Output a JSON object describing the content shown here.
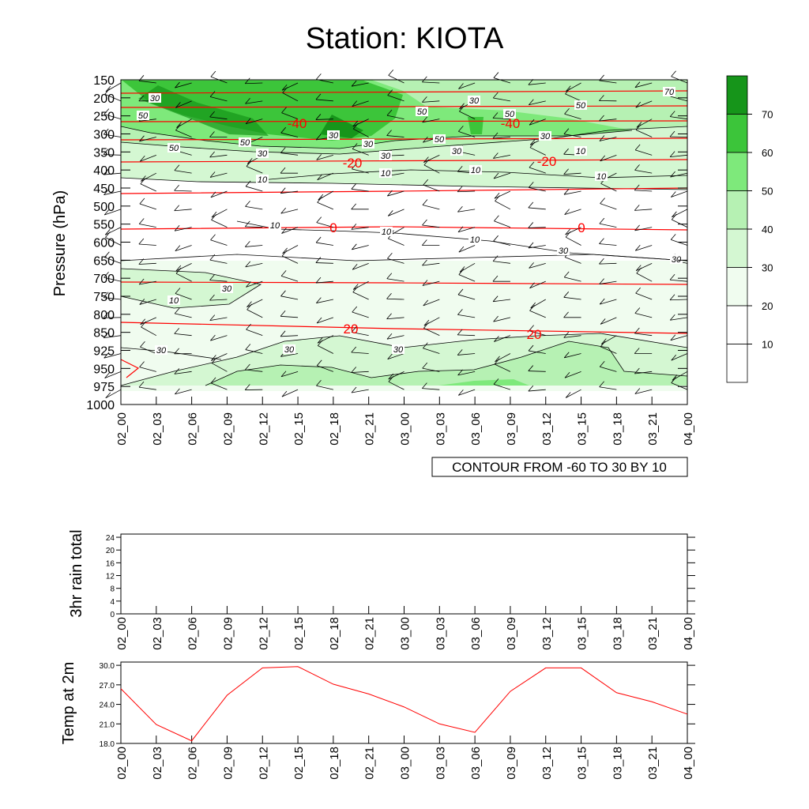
{
  "title": "Station: KIOTA",
  "colors": {
    "levels": [
      "#ffffff",
      "#f0fcef",
      "#d4f7d2",
      "#b6f1b3",
      "#7ee97b",
      "#3cc53a",
      "#16951a"
    ],
    "temperature_line": "#ff0000",
    "contour_line": "#000000"
  },
  "chart_data": [
    {
      "type": "heatmap",
      "title": "Station: KIOTA",
      "xlabel": "",
      "ylabel": "Pressure (hPa)",
      "x": [
        "02_00",
        "02_03",
        "02_06",
        "02_09",
        "02_12",
        "02_15",
        "02_18",
        "02_21",
        "03_00",
        "03_03",
        "03_06",
        "03_09",
        "03_12",
        "03_15",
        "03_18",
        "03_21",
        "04_00"
      ],
      "y": [
        150,
        200,
        250,
        300,
        350,
        400,
        450,
        500,
        550,
        600,
        650,
        700,
        750,
        800,
        850,
        925,
        950,
        975,
        1000
      ],
      "y_reversed": true,
      "shaded_variable_levels": [
        10,
        20,
        30,
        40,
        50,
        60,
        70
      ],
      "shading_bins": [
        {
          "range": "< 10",
          "color": "#ffffff"
        },
        {
          "range": "10-20",
          "color": "#ffffff"
        },
        {
          "range": "20-30",
          "color": "#f0fcef"
        },
        {
          "range": "30-40",
          "color": "#d4f7d2"
        },
        {
          "range": "40-50",
          "color": "#b6f1b3"
        },
        {
          "range": "50-60",
          "color": "#7ee97b"
        },
        {
          "range": "60-70",
          "color": "#3cc53a"
        },
        {
          "range": "> 70",
          "color": "#16951a"
        }
      ],
      "colorbar_labels": [
        "70",
        "60",
        "50",
        "40",
        "30",
        "20",
        "10"
      ],
      "contour_labels": [
        "50",
        "30",
        "50",
        "50",
        "30",
        "50",
        "70",
        "50",
        "30",
        "30",
        "50",
        "30",
        "50",
        "30",
        "30",
        "30",
        "10",
        "10",
        "10",
        "10",
        "10",
        "10",
        "10",
        "10",
        "30",
        "30",
        "10",
        "30",
        "30",
        "30",
        "30"
      ],
      "temperature_contours": [
        {
          "level": -40,
          "label": "-40"
        },
        {
          "level": -20,
          "label": "-20"
        },
        {
          "level": 0,
          "label": "0"
        },
        {
          "level": 20,
          "label": "20"
        }
      ],
      "info_box": "CONTOUR FROM -60 TO 30 BY 10"
    },
    {
      "type": "line",
      "ylabel": "3hr rain total",
      "x": [
        "02_00",
        "02_03",
        "02_06",
        "02_09",
        "02_12",
        "02_15",
        "02_18",
        "02_21",
        "03_00",
        "03_03",
        "03_06",
        "03_09",
        "03_12",
        "03_15",
        "03_18",
        "03_21",
        "04_00"
      ],
      "yticks": [
        0,
        4,
        8,
        12,
        16,
        20,
        24
      ],
      "ylim": [
        0,
        25
      ],
      "series": [
        {
          "values": [
            0,
            0,
            0,
            0,
            0,
            0,
            0,
            0,
            0,
            0,
            0,
            0,
            0,
            0,
            0,
            0,
            0
          ]
        }
      ]
    },
    {
      "type": "line",
      "ylabel": "Temp at 2m",
      "x": [
        "02_00",
        "02_03",
        "02_06",
        "02_09",
        "02_12",
        "02_15",
        "02_18",
        "02_21",
        "03_00",
        "03_03",
        "03_06",
        "03_09",
        "03_12",
        "03_15",
        "03_18",
        "03_21",
        "04_00"
      ],
      "yticks": [
        "18.0",
        "21.0",
        "24.0",
        "27.0",
        "30.0"
      ],
      "ylim": [
        18,
        30.5
      ],
      "series": [
        {
          "values": [
            26.4,
            20.9,
            18.4,
            25.4,
            29.6,
            29.8,
            27.1,
            25.6,
            23.6,
            21.0,
            19.7,
            26.0,
            29.6,
            29.6,
            25.8,
            24.4,
            22.5
          ]
        }
      ]
    }
  ]
}
